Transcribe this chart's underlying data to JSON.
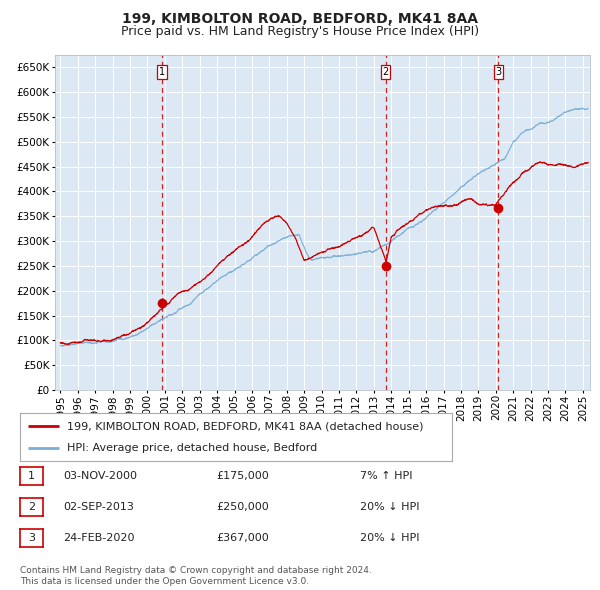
{
  "title": "199, KIMBOLTON ROAD, BEDFORD, MK41 8AA",
  "subtitle": "Price paid vs. HM Land Registry's House Price Index (HPI)",
  "ytick_values": [
    0,
    50000,
    100000,
    150000,
    200000,
    250000,
    300000,
    350000,
    400000,
    450000,
    500000,
    550000,
    600000,
    650000
  ],
  "xlim_start": 1994.7,
  "xlim_end": 2025.4,
  "ylim_min": 0,
  "ylim_max": 675000,
  "sale_dates": [
    2000.84,
    2013.67,
    2020.15
  ],
  "sale_prices": [
    175000,
    250000,
    367000
  ],
  "sale_labels": [
    "1",
    "2",
    "3"
  ],
  "sale_date_strs": [
    "03-NOV-2000",
    "02-SEP-2013",
    "24-FEB-2020"
  ],
  "sale_price_strs": [
    "£175,000",
    "£250,000",
    "£367,000"
  ],
  "sale_hpi_strs": [
    "7% ↑ HPI",
    "20% ↓ HPI",
    "20% ↓ HPI"
  ],
  "legend_line1": "199, KIMBOLTON ROAD, BEDFORD, MK41 8AA (detached house)",
  "legend_line2": "HPI: Average price, detached house, Bedford",
  "footer": "Contains HM Land Registry data © Crown copyright and database right 2024.\nThis data is licensed under the Open Government Licence v3.0.",
  "bg_color": "#dce9f5",
  "grid_color": "#c8d8e8",
  "red_line_color": "#cc0000",
  "blue_line_color": "#7aadd4",
  "vline_color": "#cc0000",
  "title_fontsize": 10,
  "subtitle_fontsize": 9,
  "tick_fontsize": 7.5,
  "legend_fontsize": 8,
  "footer_fontsize": 6.5
}
